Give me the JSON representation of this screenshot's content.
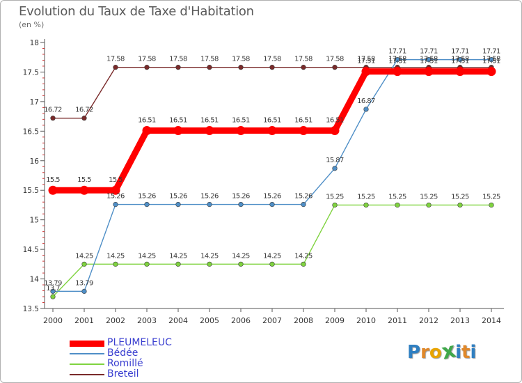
{
  "colors": {
    "PLEUMELEUC": "#ff0000",
    "Bedee": "#4f8fc7",
    "Romille": "#7fd33f",
    "Breteil": "#7a2a2a",
    "legend_text": "#3a3fd0"
  },
  "logo": {
    "letters": [
      "P",
      "r",
      "o",
      "x",
      "i",
      "t",
      "i"
    ],
    "colors": [
      "#2f7fc1",
      "#e0882a",
      "#e8a400",
      "#3fa84a",
      "#2f7fc1",
      "#e0882a",
      "#2f7fc1"
    ]
  },
  "chart_data": {
    "type": "line",
    "title": "Evolution du Taux de Taxe d'Habitation",
    "subtitle": "(en %)",
    "xlabel": "",
    "ylabel": "(en %)",
    "x": [
      "2000",
      "2001",
      "2002",
      "2003",
      "2004",
      "2005",
      "2006",
      "2007",
      "2008",
      "2009",
      "2010",
      "2011",
      "2012",
      "2013",
      "2014"
    ],
    "ylim": [
      13.5,
      18
    ],
    "yticks": [
      "13.5",
      "14",
      "14.5",
      "15",
      "15.5",
      "16",
      "16.5",
      "17",
      "17.5",
      "18"
    ],
    "grid": false,
    "legend_position": "bottom-left",
    "series": [
      {
        "name": "PLEUMELEUC",
        "values": [
          15.5,
          15.5,
          15.5,
          16.51,
          16.51,
          16.51,
          16.51,
          16.51,
          16.51,
          16.51,
          17.51,
          17.51,
          17.51,
          17.51,
          17.51
        ],
        "labels": [
          "15.5",
          "15.5",
          "15.5",
          "16.51",
          "16.51",
          "16.51",
          "16.51",
          "16.51",
          "16.51",
          "16.51",
          "17.51",
          "17.51",
          "17.51",
          "17.51",
          "17.51"
        ]
      },
      {
        "name": "Bédée",
        "values": [
          13.79,
          13.79,
          15.26,
          15.26,
          15.26,
          15.26,
          15.26,
          15.26,
          15.26,
          15.87,
          16.87,
          17.71,
          17.71,
          17.71,
          17.71
        ],
        "labels": [
          "13.79",
          "13.79",
          "15.26",
          "15.26",
          "15.26",
          "15.26",
          "15.26",
          "15.26",
          "15.26",
          "15.87",
          "16.87",
          "17.71",
          "17.71",
          "17.71",
          "17.71"
        ]
      },
      {
        "name": "Romillé",
        "values": [
          13.7,
          14.25,
          14.25,
          14.25,
          14.25,
          14.25,
          14.25,
          14.25,
          14.25,
          15.25,
          15.25,
          15.25,
          15.25,
          15.25,
          15.25
        ],
        "labels": [
          "13.7",
          "14.25",
          "14.25",
          "14.25",
          "14.25",
          "14.25",
          "14.25",
          "14.25",
          "14.25",
          "15.25",
          "15.25",
          "15.25",
          "15.25",
          "15.25",
          "15.25"
        ]
      },
      {
        "name": "Breteil",
        "values": [
          16.72,
          16.72,
          17.58,
          17.58,
          17.58,
          17.58,
          17.58,
          17.58,
          17.58,
          17.58,
          17.58,
          17.58,
          17.58,
          17.58,
          17.58
        ],
        "labels": [
          "16.72",
          "16.72",
          "17.58",
          "17.58",
          "17.58",
          "17.58",
          "17.58",
          "17.58",
          "17.58",
          "17.58",
          "17.58",
          "17.58",
          "17.58",
          "17.58",
          "17.58"
        ]
      }
    ]
  }
}
